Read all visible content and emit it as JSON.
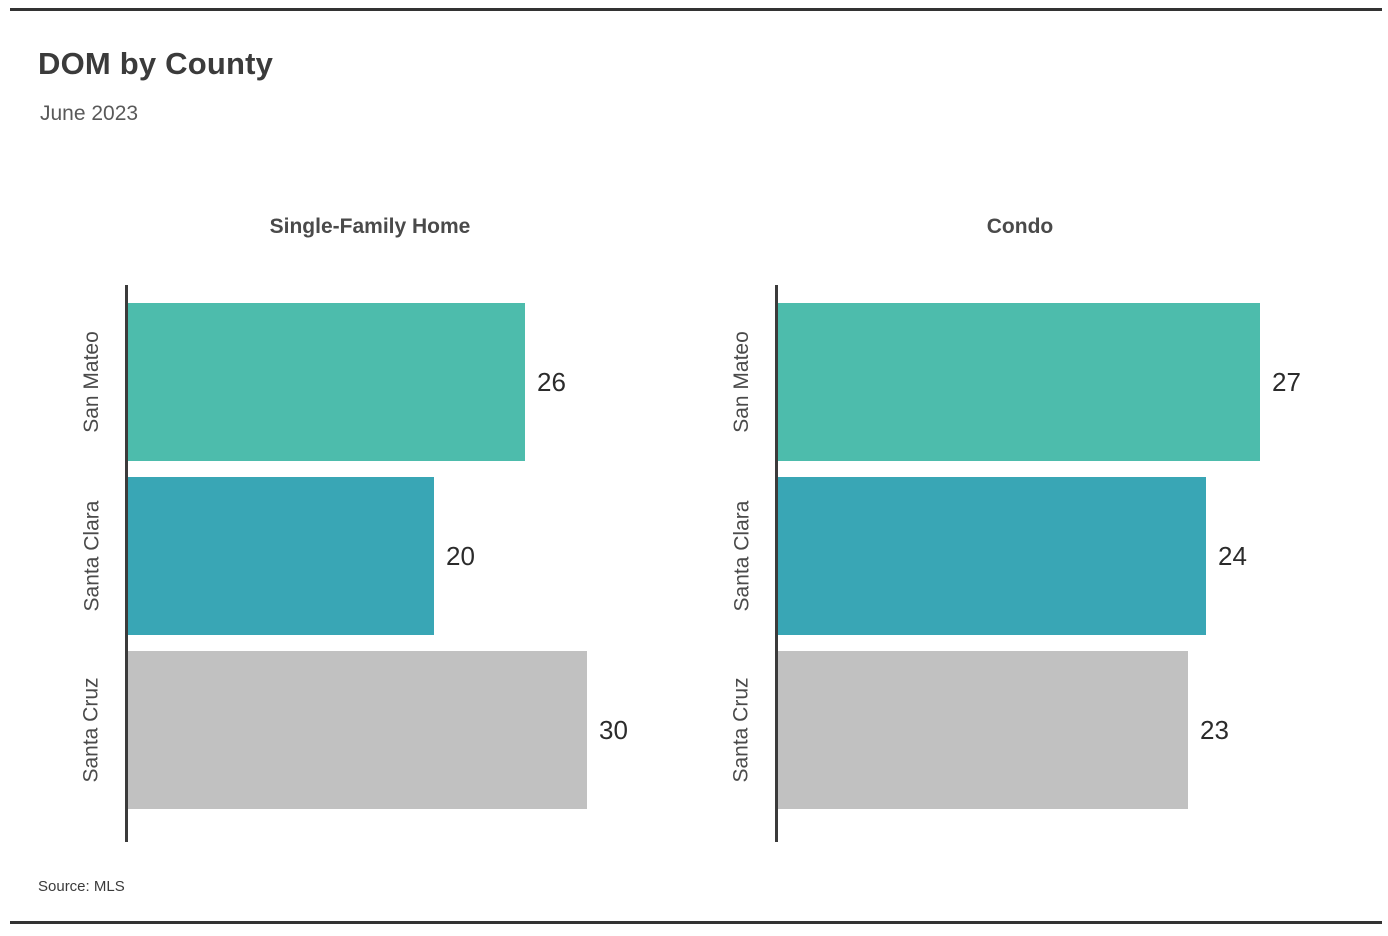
{
  "header": {
    "title": "DOM by County",
    "subtitle": "June 2023"
  },
  "footer": {
    "source": "Source: MLS"
  },
  "chart_data": [
    {
      "type": "bar",
      "orientation": "horizontal",
      "title": "Single-Family Home",
      "categories": [
        "San Mateo",
        "Santa Clara",
        "Santa Cruz"
      ],
      "values": [
        26,
        20,
        30
      ],
      "xlim": [
        0,
        35
      ],
      "grid": false,
      "data_labels": true,
      "bar_colors": [
        "#4dbcac",
        "#39a6b5",
        "#c1c1c1"
      ]
    },
    {
      "type": "bar",
      "orientation": "horizontal",
      "title": "Condo",
      "categories": [
        "San Mateo",
        "Santa Clara",
        "Santa Cruz"
      ],
      "values": [
        27,
        24,
        23
      ],
      "xlim": [
        0,
        30
      ],
      "grid": false,
      "data_labels": true,
      "bar_colors": [
        "#4dbcac",
        "#39a6b5",
        "#c1c1c1"
      ]
    }
  ],
  "style": {
    "background": "#ffffff",
    "rule_color": "#333333",
    "axis_color": "#3b3b3b",
    "title_color": "#3b3b3b",
    "subtitle_color": "#595959",
    "panel_title_color": "#4a4a4a",
    "category_label_color": "#4a4a4a",
    "value_label_color": "#2b2b2b"
  }
}
